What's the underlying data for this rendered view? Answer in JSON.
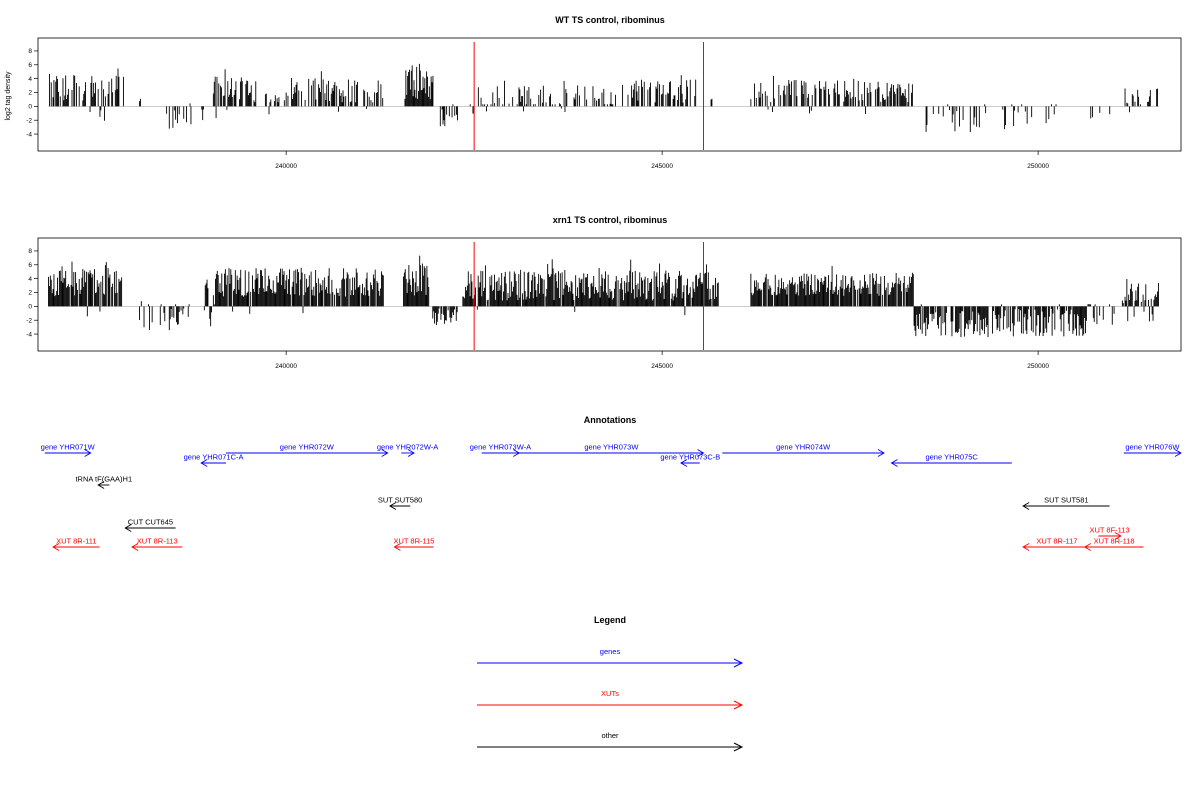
{
  "colors": {
    "genes": "#0000ff",
    "XUTs": "#ff0000",
    "other": "#000000",
    "marker": "#ff0000"
  },
  "chart_data": [
    {
      "type": "bar",
      "title": "WT TS control, ribominus",
      "ylabel": "log2 tag density",
      "xlabel": "",
      "xlim": [
        236700,
        251900
      ],
      "ylim": [
        -5,
        9
      ],
      "yticks": [
        -4,
        -2,
        0,
        2,
        4,
        6,
        8
      ],
      "xticks": [
        240000,
        245000,
        250000
      ],
      "grid": false,
      "marker_lines": [
        242500,
        245550
      ],
      "regions": [
        {
          "start": 236840,
          "end": 237860,
          "mean": 2.6,
          "amp": 3.5,
          "neg": 0.12,
          "negamp": 2.0,
          "density": 0.55
        },
        {
          "start": 238050,
          "end": 238065,
          "mean": 1.0,
          "amp": 0.5,
          "neg": 0.0,
          "negamp": 0,
          "density": 1.0
        },
        {
          "start": 238350,
          "end": 238900,
          "mean": -0.5,
          "amp": 2.6,
          "neg": 0.9,
          "negamp": 3.4,
          "density": 0.35
        },
        {
          "start": 238900,
          "end": 239600,
          "mean": 2.4,
          "amp": 3.2,
          "neg": 0.06,
          "negamp": 1.5,
          "density": 0.55
        },
        {
          "start": 239700,
          "end": 241300,
          "mean": 2.3,
          "amp": 3.0,
          "neg": 0.02,
          "negamp": 1.0,
          "density": 0.55
        },
        {
          "start": 241580,
          "end": 241960,
          "mean": 3.6,
          "amp": 4.6,
          "neg": 0.0,
          "negamp": 0,
          "density": 1.0
        },
        {
          "start": 242050,
          "end": 242280,
          "mean": -1.0,
          "amp": 1.6,
          "neg": 0.9,
          "negamp": 2.8,
          "density": 0.6
        },
        {
          "start": 242400,
          "end": 244400,
          "mean": 1.4,
          "amp": 2.8,
          "neg": 0.03,
          "negamp": 0.8,
          "density": 0.4
        },
        {
          "start": 244450,
          "end": 245450,
          "mean": 2.2,
          "amp": 2.8,
          "neg": 0.0,
          "negamp": 0,
          "density": 0.55
        },
        {
          "start": 245650,
          "end": 245670,
          "mean": 1.0,
          "amp": 0.5,
          "neg": 0.0,
          "negamp": 0,
          "density": 1.0
        },
        {
          "start": 246180,
          "end": 248350,
          "mean": 2.3,
          "amp": 2.8,
          "neg": 0.03,
          "negamp": 1.2,
          "density": 0.55
        },
        {
          "start": 248450,
          "end": 250250,
          "mean": -1.2,
          "amp": 2.4,
          "neg": 0.95,
          "negamp": 3.6,
          "density": 0.22
        },
        {
          "start": 250700,
          "end": 251000,
          "mean": -0.6,
          "amp": 1.2,
          "neg": 0.8,
          "negamp": 1.5,
          "density": 0.15
        },
        {
          "start": 251120,
          "end": 251610,
          "mean": 1.4,
          "amp": 2.4,
          "neg": 0.15,
          "negamp": 1.5,
          "density": 0.45
        }
      ]
    },
    {
      "type": "bar",
      "title": "xrn1 TS control, ribominus",
      "ylabel": "",
      "xlabel": "",
      "xlim": [
        236700,
        251900
      ],
      "ylim": [
        -5,
        9
      ],
      "yticks": [
        -4,
        -2,
        0,
        2,
        4,
        6,
        8
      ],
      "xticks": [
        240000,
        245000,
        250000
      ],
      "grid": false,
      "marker_lines": [
        242500,
        245550
      ],
      "regions": [
        {
          "start": 236840,
          "end": 237820,
          "mean": 3.4,
          "amp": 3.6,
          "neg": 0.05,
          "negamp": 1.6,
          "density": 0.95
        },
        {
          "start": 238050,
          "end": 238720,
          "mean": -0.8,
          "amp": 2.6,
          "neg": 0.75,
          "negamp": 3.2,
          "density": 0.45
        },
        {
          "start": 238900,
          "end": 239060,
          "mean": 1.5,
          "amp": 4.0,
          "neg": 0.5,
          "negamp": 3.0,
          "density": 0.6
        },
        {
          "start": 239060,
          "end": 241300,
          "mean": 3.5,
          "amp": 3.5,
          "neg": 0.02,
          "negamp": 1.0,
          "density": 0.95
        },
        {
          "start": 241560,
          "end": 241900,
          "mean": 3.8,
          "amp": 4.2,
          "neg": 0.0,
          "negamp": 0,
          "density": 1.0
        },
        {
          "start": 241950,
          "end": 242280,
          "mean": -1.2,
          "amp": 1.5,
          "neg": 0.9,
          "negamp": 2.6,
          "density": 0.8
        },
        {
          "start": 242350,
          "end": 245750,
          "mean": 3.0,
          "amp": 3.6,
          "neg": 0.01,
          "negamp": 1.0,
          "density": 0.95
        },
        {
          "start": 246180,
          "end": 248350,
          "mean": 3.2,
          "amp": 2.8,
          "neg": 0.0,
          "negamp": 0,
          "density": 0.95
        },
        {
          "start": 248350,
          "end": 250650,
          "mean": -2.4,
          "amp": 2.8,
          "neg": 0.98,
          "negamp": 4.2,
          "density": 0.8
        },
        {
          "start": 250650,
          "end": 251020,
          "mean": -0.6,
          "amp": 2.0,
          "neg": 0.7,
          "negamp": 2.5,
          "density": 0.4
        },
        {
          "start": 251120,
          "end": 251610,
          "mean": 2.2,
          "amp": 3.0,
          "neg": 0.25,
          "negamp": 2.6,
          "density": 0.8
        }
      ]
    }
  ],
  "annotations": {
    "title": "Annotations",
    "features": [
      {
        "label": "gene YHR071W",
        "start": 236790,
        "end": 237400,
        "strand": "+",
        "kind": "genes",
        "row": 0
      },
      {
        "label": "gene YHR071C-A",
        "start": 238870,
        "end": 239200,
        "strand": "-",
        "kind": "genes",
        "row": 1
      },
      {
        "label": "gene YHR072W",
        "start": 239200,
        "end": 241350,
        "strand": "+",
        "kind": "genes",
        "row": 0
      },
      {
        "label": "gene YHR072W-A",
        "start": 241530,
        "end": 241700,
        "strand": "+",
        "kind": "genes",
        "row": 0
      },
      {
        "label": "gene YHR073W-A",
        "start": 242600,
        "end": 243100,
        "strand": "+",
        "kind": "genes",
        "row": 0
      },
      {
        "label": "gene YHR073W",
        "start": 243100,
        "end": 245550,
        "strand": "+",
        "kind": "genes",
        "row": 0
      },
      {
        "label": "gene YHR073C-B",
        "start": 245250,
        "end": 245500,
        "strand": "-",
        "kind": "genes",
        "row": 1
      },
      {
        "label": "gene YHR074W",
        "start": 245800,
        "end": 247950,
        "strand": "+",
        "kind": "genes",
        "row": 0
      },
      {
        "label": "gene YHR075C",
        "start": 248050,
        "end": 249650,
        "strand": "-",
        "kind": "genes",
        "row": 1
      },
      {
        "label": "gene YHR076W",
        "start": 251140,
        "end": 251900,
        "strand": "+",
        "kind": "genes",
        "row": 0
      },
      {
        "label": "tRNA tF(GAA)H1",
        "start": 237500,
        "end": 237650,
        "strand": "-",
        "kind": "other",
        "row": 2
      },
      {
        "label": "SUT SUT580",
        "start": 241380,
        "end": 241650,
        "strand": "-",
        "kind": "other",
        "row": 3
      },
      {
        "label": "SUT SUT581",
        "start": 249800,
        "end": 250950,
        "strand": "-",
        "kind": "other",
        "row": 3
      },
      {
        "label": "CUT CUT645",
        "start": 237860,
        "end": 238530,
        "strand": "-",
        "kind": "other",
        "row": 4
      },
      {
        "label": "XUT 8R-111",
        "start": 236900,
        "end": 237520,
        "strand": "-",
        "kind": "XUTs",
        "row": 6
      },
      {
        "label": "XUT 8R-113",
        "start": 237950,
        "end": 238620,
        "strand": "-",
        "kind": "XUTs",
        "row": 6
      },
      {
        "label": "XUT 8R-115",
        "start": 241440,
        "end": 241960,
        "strand": "-",
        "kind": "XUTs",
        "row": 6
      },
      {
        "label": "XUT 8F-113",
        "start": 250800,
        "end": 251100,
        "strand": "+",
        "kind": "XUTs",
        "row": 5
      },
      {
        "label": "XUT 8R-117",
        "start": 249800,
        "end": 250700,
        "strand": "-",
        "kind": "XUTs",
        "row": 6
      },
      {
        "label": "XUT 8R-118",
        "start": 250620,
        "end": 251400,
        "strand": "-",
        "kind": "XUTs",
        "row": 6
      }
    ]
  },
  "legend": {
    "title": "Legend",
    "items": [
      {
        "label": "genes",
        "kind": "genes"
      },
      {
        "label": "XUTs",
        "kind": "XUTs"
      },
      {
        "label": "other",
        "kind": "other"
      }
    ]
  }
}
